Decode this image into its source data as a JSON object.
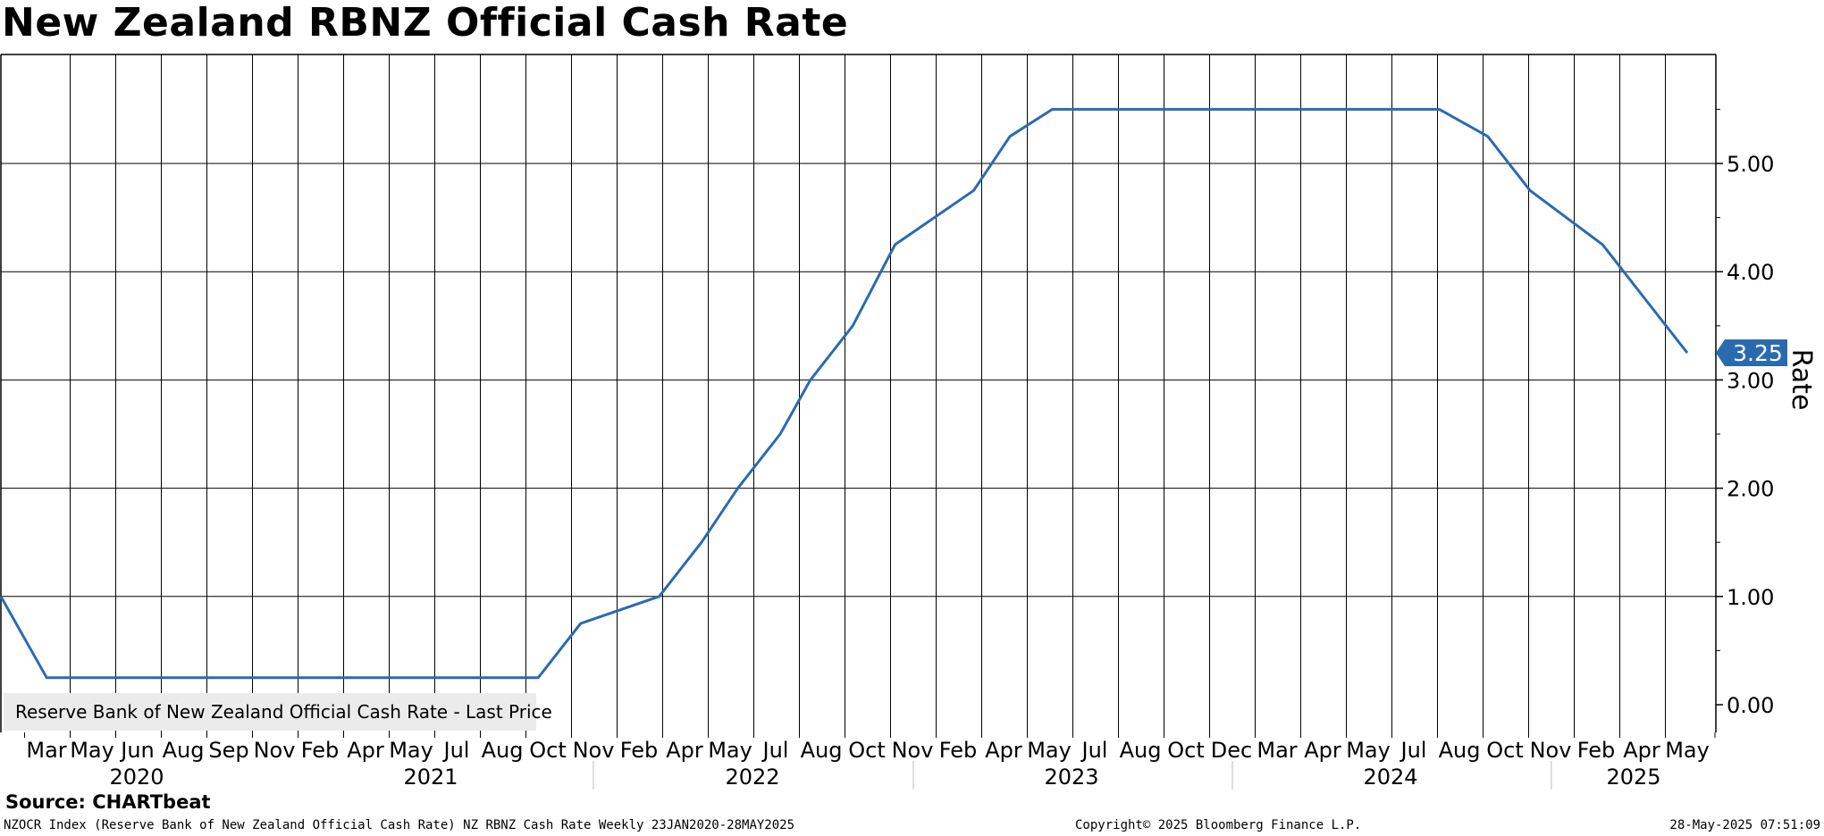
{
  "title": "New Zealand RBNZ Official Cash Rate",
  "source": "Source: CHARTbeat",
  "footer": {
    "left": "NZOCR Index (Reserve Bank of New Zealand Official Cash Rate) NZ RBNZ Cash Rate  Weekly 23JAN2020-28MAY2025",
    "center": "Copyright© 2025 Bloomberg Finance L.P.",
    "right": "28-May-2025 07:51:09"
  },
  "colors": {
    "line": "#2a6bb0",
    "label_bg": "#2a6bb0",
    "grid": "#000000",
    "legend_bg": "#ebebeb"
  },
  "chart_data": {
    "type": "line",
    "title": "New Zealand RBNZ Official Cash Rate",
    "ylabel": "Rate",
    "ylim": [
      -0.25,
      6.0
    ],
    "y_ticks": [
      "0.00",
      "1.00",
      "2.00",
      "3.00",
      "4.00",
      "5.00"
    ],
    "y_axis_side": "right",
    "grid": true,
    "legend": {
      "placement": "bottom-left",
      "entries": [
        "Reserve Bank of New Zealand Official Cash Rate - Last Price"
      ]
    },
    "last_value_label": "3.25",
    "x_month_labels": [
      "Mar",
      "May",
      "Jun",
      "Aug",
      "Sep",
      "Nov",
      "Feb",
      "Apr",
      "May",
      "Jul",
      "Aug",
      "Oct",
      "Nov",
      "Feb",
      "Apr",
      "May",
      "Jul",
      "Aug",
      "Oct",
      "Nov",
      "Feb",
      "Apr",
      "May",
      "Jul",
      "Aug",
      "Oct",
      "Dec",
      "Mar",
      "Apr",
      "May",
      "Jul",
      "Aug",
      "Oct",
      "Nov",
      "Feb",
      "Apr",
      "May"
    ],
    "x_year_labels": [
      "2020",
      "2021",
      "2022",
      "2023",
      "2024",
      "2025"
    ],
    "series": [
      {
        "name": "Reserve Bank of New Zealand Official Cash Rate - Last Price",
        "points": [
          [
            "2020-01-23",
            1.0
          ],
          [
            "2020-03-16",
            0.25
          ],
          [
            "2021-10-06",
            0.25
          ],
          [
            "2021-11-24",
            0.75
          ],
          [
            "2022-02-23",
            1.0
          ],
          [
            "2022-04-13",
            1.5
          ],
          [
            "2022-05-25",
            2.0
          ],
          [
            "2022-07-13",
            2.5
          ],
          [
            "2022-08-17",
            3.0
          ],
          [
            "2022-10-05",
            3.5
          ],
          [
            "2022-11-23",
            4.25
          ],
          [
            "2023-02-22",
            4.75
          ],
          [
            "2023-04-05",
            5.25
          ],
          [
            "2023-05-24",
            5.5
          ],
          [
            "2024-08-14",
            5.5
          ],
          [
            "2024-10-09",
            5.25
          ],
          [
            "2024-11-27",
            4.75
          ],
          [
            "2025-02-19",
            4.25
          ],
          [
            "2025-04-09",
            3.75
          ],
          [
            "2025-05-28",
            3.25
          ]
        ]
      }
    ]
  }
}
